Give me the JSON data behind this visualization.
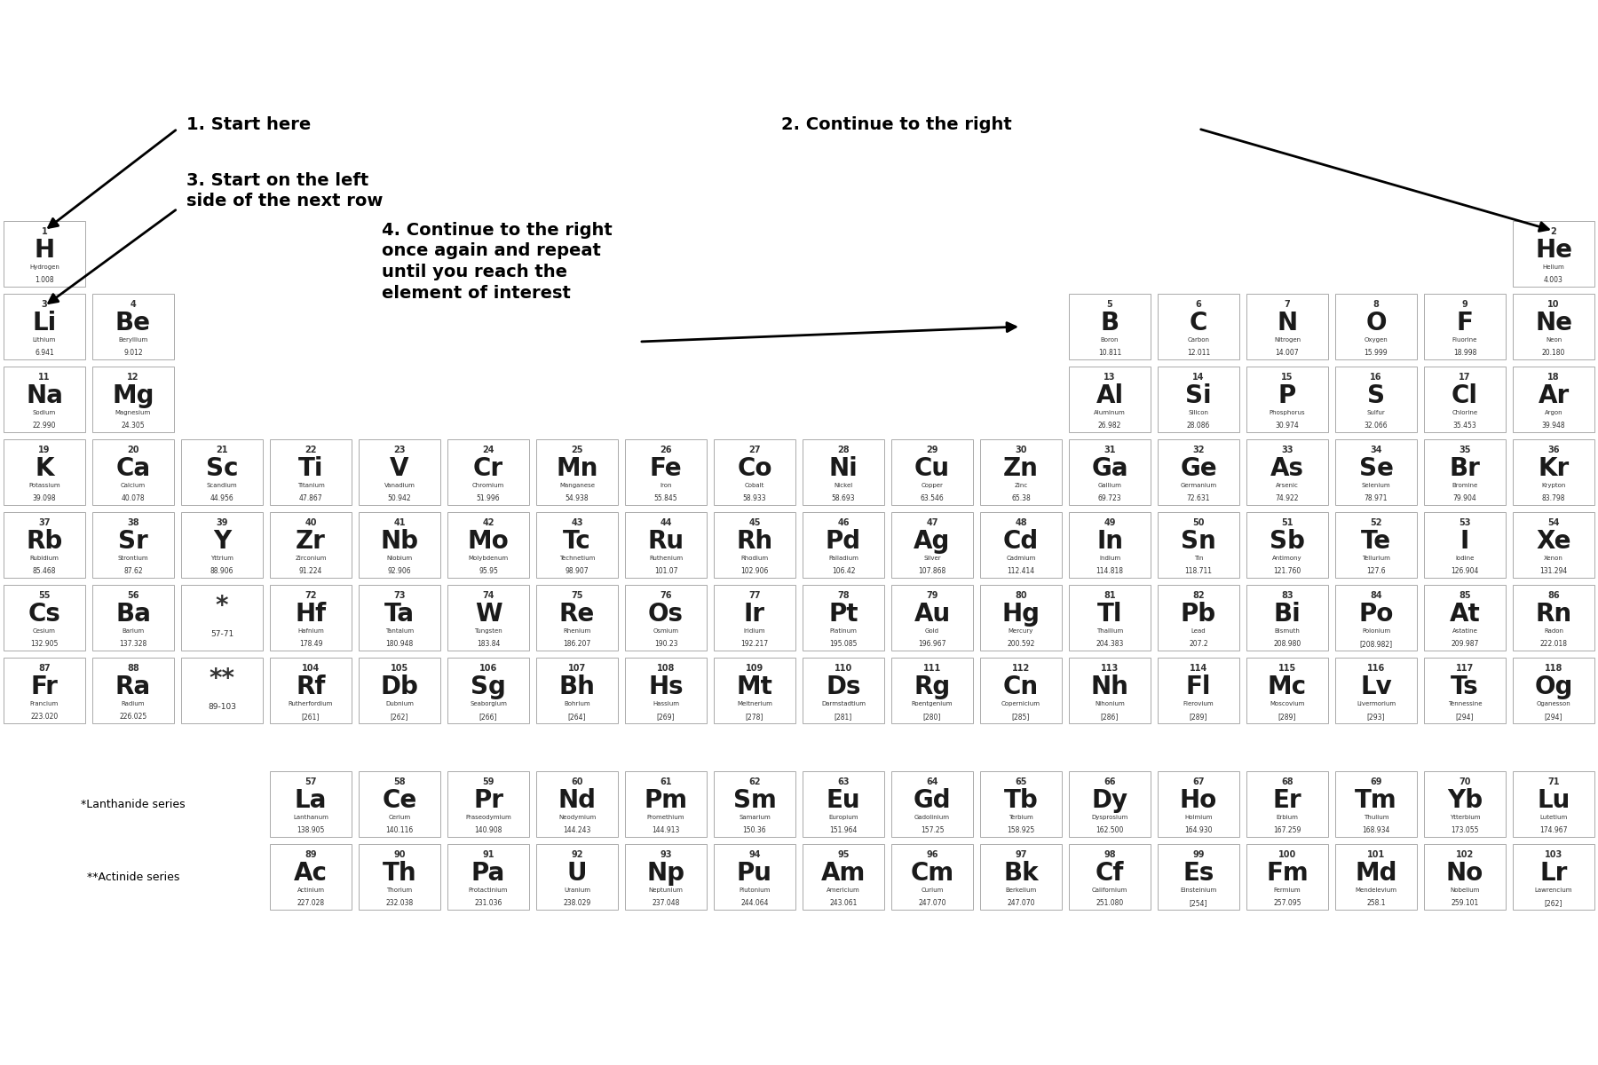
{
  "background_color": "#ffffff",
  "elements": [
    {
      "num": 1,
      "sym": "H",
      "name": "Hydrogen",
      "mass": "1.008",
      "row": 1,
      "col": 1
    },
    {
      "num": 2,
      "sym": "He",
      "name": "Helium",
      "mass": "4.003",
      "row": 1,
      "col": 18
    },
    {
      "num": 3,
      "sym": "Li",
      "name": "Lithium",
      "mass": "6.941",
      "row": 2,
      "col": 1
    },
    {
      "num": 4,
      "sym": "Be",
      "name": "Beryllium",
      "mass": "9.012",
      "row": 2,
      "col": 2
    },
    {
      "num": 5,
      "sym": "B",
      "name": "Boron",
      "mass": "10.811",
      "row": 2,
      "col": 13
    },
    {
      "num": 6,
      "sym": "C",
      "name": "Carbon",
      "mass": "12.011",
      "row": 2,
      "col": 14
    },
    {
      "num": 7,
      "sym": "N",
      "name": "Nitrogen",
      "mass": "14.007",
      "row": 2,
      "col": 15
    },
    {
      "num": 8,
      "sym": "O",
      "name": "Oxygen",
      "mass": "15.999",
      "row": 2,
      "col": 16
    },
    {
      "num": 9,
      "sym": "F",
      "name": "Fluorine",
      "mass": "18.998",
      "row": 2,
      "col": 17
    },
    {
      "num": 10,
      "sym": "Ne",
      "name": "Neon",
      "mass": "20.180",
      "row": 2,
      "col": 18
    },
    {
      "num": 11,
      "sym": "Na",
      "name": "Sodium",
      "mass": "22.990",
      "row": 3,
      "col": 1
    },
    {
      "num": 12,
      "sym": "Mg",
      "name": "Magnesium",
      "mass": "24.305",
      "row": 3,
      "col": 2
    },
    {
      "num": 13,
      "sym": "Al",
      "name": "Aluminum",
      "mass": "26.982",
      "row": 3,
      "col": 13
    },
    {
      "num": 14,
      "sym": "Si",
      "name": "Silicon",
      "mass": "28.086",
      "row": 3,
      "col": 14
    },
    {
      "num": 15,
      "sym": "P",
      "name": "Phosphorus",
      "mass": "30.974",
      "row": 3,
      "col": 15
    },
    {
      "num": 16,
      "sym": "S",
      "name": "Sulfur",
      "mass": "32.066",
      "row": 3,
      "col": 16
    },
    {
      "num": 17,
      "sym": "Cl",
      "name": "Chlorine",
      "mass": "35.453",
      "row": 3,
      "col": 17
    },
    {
      "num": 18,
      "sym": "Ar",
      "name": "Argon",
      "mass": "39.948",
      "row": 3,
      "col": 18
    },
    {
      "num": 19,
      "sym": "K",
      "name": "Potassium",
      "mass": "39.098",
      "row": 4,
      "col": 1
    },
    {
      "num": 20,
      "sym": "Ca",
      "name": "Calcium",
      "mass": "40.078",
      "row": 4,
      "col": 2
    },
    {
      "num": 21,
      "sym": "Sc",
      "name": "Scandium",
      "mass": "44.956",
      "row": 4,
      "col": 3
    },
    {
      "num": 22,
      "sym": "Ti",
      "name": "Titanium",
      "mass": "47.867",
      "row": 4,
      "col": 4
    },
    {
      "num": 23,
      "sym": "V",
      "name": "Vanadium",
      "mass": "50.942",
      "row": 4,
      "col": 5
    },
    {
      "num": 24,
      "sym": "Cr",
      "name": "Chromium",
      "mass": "51.996",
      "row": 4,
      "col": 6
    },
    {
      "num": 25,
      "sym": "Mn",
      "name": "Manganese",
      "mass": "54.938",
      "row": 4,
      "col": 7
    },
    {
      "num": 26,
      "sym": "Fe",
      "name": "Iron",
      "mass": "55.845",
      "row": 4,
      "col": 8
    },
    {
      "num": 27,
      "sym": "Co",
      "name": "Cobalt",
      "mass": "58.933",
      "row": 4,
      "col": 9
    },
    {
      "num": 28,
      "sym": "Ni",
      "name": "Nickel",
      "mass": "58.693",
      "row": 4,
      "col": 10
    },
    {
      "num": 29,
      "sym": "Cu",
      "name": "Copper",
      "mass": "63.546",
      "row": 4,
      "col": 11
    },
    {
      "num": 30,
      "sym": "Zn",
      "name": "Zinc",
      "mass": "65.38",
      "row": 4,
      "col": 12
    },
    {
      "num": 31,
      "sym": "Ga",
      "name": "Gallium",
      "mass": "69.723",
      "row": 4,
      "col": 13
    },
    {
      "num": 32,
      "sym": "Ge",
      "name": "Germanium",
      "mass": "72.631",
      "row": 4,
      "col": 14
    },
    {
      "num": 33,
      "sym": "As",
      "name": "Arsenic",
      "mass": "74.922",
      "row": 4,
      "col": 15
    },
    {
      "num": 34,
      "sym": "Se",
      "name": "Selenium",
      "mass": "78.971",
      "row": 4,
      "col": 16
    },
    {
      "num": 35,
      "sym": "Br",
      "name": "Bromine",
      "mass": "79.904",
      "row": 4,
      "col": 17
    },
    {
      "num": 36,
      "sym": "Kr",
      "name": "Krypton",
      "mass": "83.798",
      "row": 4,
      "col": 18
    },
    {
      "num": 37,
      "sym": "Rb",
      "name": "Rubidium",
      "mass": "85.468",
      "row": 5,
      "col": 1
    },
    {
      "num": 38,
      "sym": "Sr",
      "name": "Strontium",
      "mass": "87.62",
      "row": 5,
      "col": 2
    },
    {
      "num": 39,
      "sym": "Y",
      "name": "Yttrium",
      "mass": "88.906",
      "row": 5,
      "col": 3
    },
    {
      "num": 40,
      "sym": "Zr",
      "name": "Zirconium",
      "mass": "91.224",
      "row": 5,
      "col": 4
    },
    {
      "num": 41,
      "sym": "Nb",
      "name": "Niobium",
      "mass": "92.906",
      "row": 5,
      "col": 5
    },
    {
      "num": 42,
      "sym": "Mo",
      "name": "Molybdenum",
      "mass": "95.95",
      "row": 5,
      "col": 6
    },
    {
      "num": 43,
      "sym": "Tc",
      "name": "Technetium",
      "mass": "98.907",
      "row": 5,
      "col": 7
    },
    {
      "num": 44,
      "sym": "Ru",
      "name": "Ruthenium",
      "mass": "101.07",
      "row": 5,
      "col": 8
    },
    {
      "num": 45,
      "sym": "Rh",
      "name": "Rhodium",
      "mass": "102.906",
      "row": 5,
      "col": 9
    },
    {
      "num": 46,
      "sym": "Pd",
      "name": "Palladium",
      "mass": "106.42",
      "row": 5,
      "col": 10
    },
    {
      "num": 47,
      "sym": "Ag",
      "name": "Silver",
      "mass": "107.868",
      "row": 5,
      "col": 11
    },
    {
      "num": 48,
      "sym": "Cd",
      "name": "Cadmium",
      "mass": "112.414",
      "row": 5,
      "col": 12
    },
    {
      "num": 49,
      "sym": "In",
      "name": "Indium",
      "mass": "114.818",
      "row": 5,
      "col": 13
    },
    {
      "num": 50,
      "sym": "Sn",
      "name": "Tin",
      "mass": "118.711",
      "row": 5,
      "col": 14
    },
    {
      "num": 51,
      "sym": "Sb",
      "name": "Antimony",
      "mass": "121.760",
      "row": 5,
      "col": 15
    },
    {
      "num": 52,
      "sym": "Te",
      "name": "Tellurium",
      "mass": "127.6",
      "row": 5,
      "col": 16
    },
    {
      "num": 53,
      "sym": "I",
      "name": "Iodine",
      "mass": "126.904",
      "row": 5,
      "col": 17
    },
    {
      "num": 54,
      "sym": "Xe",
      "name": "Xenon",
      "mass": "131.294",
      "row": 5,
      "col": 18
    },
    {
      "num": 55,
      "sym": "Cs",
      "name": "Cesium",
      "mass": "132.905",
      "row": 6,
      "col": 1
    },
    {
      "num": 56,
      "sym": "Ba",
      "name": "Barium",
      "mass": "137.328",
      "row": 6,
      "col": 2
    },
    {
      "num": "57-71",
      "sym": "*",
      "name": "",
      "mass": "",
      "row": 6,
      "col": 3,
      "special": true
    },
    {
      "num": 72,
      "sym": "Hf",
      "name": "Hafnium",
      "mass": "178.49",
      "row": 6,
      "col": 4
    },
    {
      "num": 73,
      "sym": "Ta",
      "name": "Tantalum",
      "mass": "180.948",
      "row": 6,
      "col": 5
    },
    {
      "num": 74,
      "sym": "W",
      "name": "Tungsten",
      "mass": "183.84",
      "row": 6,
      "col": 6
    },
    {
      "num": 75,
      "sym": "Re",
      "name": "Rhenium",
      "mass": "186.207",
      "row": 6,
      "col": 7
    },
    {
      "num": 76,
      "sym": "Os",
      "name": "Osmium",
      "mass": "190.23",
      "row": 6,
      "col": 8
    },
    {
      "num": 77,
      "sym": "Ir",
      "name": "Iridium",
      "mass": "192.217",
      "row": 6,
      "col": 9
    },
    {
      "num": 78,
      "sym": "Pt",
      "name": "Platinum",
      "mass": "195.085",
      "row": 6,
      "col": 10
    },
    {
      "num": 79,
      "sym": "Au",
      "name": "Gold",
      "mass": "196.967",
      "row": 6,
      "col": 11
    },
    {
      "num": 80,
      "sym": "Hg",
      "name": "Mercury",
      "mass": "200.592",
      "row": 6,
      "col": 12
    },
    {
      "num": 81,
      "sym": "Tl",
      "name": "Thallium",
      "mass": "204.383",
      "row": 6,
      "col": 13
    },
    {
      "num": 82,
      "sym": "Pb",
      "name": "Lead",
      "mass": "207.2",
      "row": 6,
      "col": 14
    },
    {
      "num": 83,
      "sym": "Bi",
      "name": "Bismuth",
      "mass": "208.980",
      "row": 6,
      "col": 15
    },
    {
      "num": 84,
      "sym": "Po",
      "name": "Polonium",
      "mass": "[208.982]",
      "row": 6,
      "col": 16
    },
    {
      "num": 85,
      "sym": "At",
      "name": "Astatine",
      "mass": "209.987",
      "row": 6,
      "col": 17
    },
    {
      "num": 86,
      "sym": "Rn",
      "name": "Radon",
      "mass": "222.018",
      "row": 6,
      "col": 18
    },
    {
      "num": 87,
      "sym": "Fr",
      "name": "Francium",
      "mass": "223.020",
      "row": 7,
      "col": 1
    },
    {
      "num": 88,
      "sym": "Ra",
      "name": "Radium",
      "mass": "226.025",
      "row": 7,
      "col": 2
    },
    {
      "num": "89-103",
      "sym": "**",
      "name": "",
      "mass": "",
      "row": 7,
      "col": 3,
      "special": true
    },
    {
      "num": 104,
      "sym": "Rf",
      "name": "Rutherfordium",
      "mass": "[261]",
      "row": 7,
      "col": 4
    },
    {
      "num": 105,
      "sym": "Db",
      "name": "Dubnium",
      "mass": "[262]",
      "row": 7,
      "col": 5
    },
    {
      "num": 106,
      "sym": "Sg",
      "name": "Seaborgium",
      "mass": "[266]",
      "row": 7,
      "col": 6
    },
    {
      "num": 107,
      "sym": "Bh",
      "name": "Bohrium",
      "mass": "[264]",
      "row": 7,
      "col": 7
    },
    {
      "num": 108,
      "sym": "Hs",
      "name": "Hassium",
      "mass": "[269]",
      "row": 7,
      "col": 8
    },
    {
      "num": 109,
      "sym": "Mt",
      "name": "Meitnerium",
      "mass": "[278]",
      "row": 7,
      "col": 9
    },
    {
      "num": 110,
      "sym": "Ds",
      "name": "Darmstadtium",
      "mass": "[281]",
      "row": 7,
      "col": 10
    },
    {
      "num": 111,
      "sym": "Rg",
      "name": "Roentgenium",
      "mass": "[280]",
      "row": 7,
      "col": 11
    },
    {
      "num": 112,
      "sym": "Cn",
      "name": "Copernicium",
      "mass": "[285]",
      "row": 7,
      "col": 12
    },
    {
      "num": 113,
      "sym": "Nh",
      "name": "Nihonium",
      "mass": "[286]",
      "row": 7,
      "col": 13
    },
    {
      "num": 114,
      "sym": "Fl",
      "name": "Flerovium",
      "mass": "[289]",
      "row": 7,
      "col": 14
    },
    {
      "num": 115,
      "sym": "Mc",
      "name": "Moscovium",
      "mass": "[289]",
      "row": 7,
      "col": 15
    },
    {
      "num": 116,
      "sym": "Lv",
      "name": "Livermorium",
      "mass": "[293]",
      "row": 7,
      "col": 16
    },
    {
      "num": 117,
      "sym": "Ts",
      "name": "Tennessine",
      "mass": "[294]",
      "row": 7,
      "col": 17
    },
    {
      "num": 118,
      "sym": "Og",
      "name": "Oganesson",
      "mass": "[294]",
      "row": 7,
      "col": 18
    },
    {
      "num": 57,
      "sym": "La",
      "name": "Lanthanum",
      "mass": "138.905",
      "row": 9,
      "col": 4
    },
    {
      "num": 58,
      "sym": "Ce",
      "name": "Cerium",
      "mass": "140.116",
      "row": 9,
      "col": 5
    },
    {
      "num": 59,
      "sym": "Pr",
      "name": "Praseodymium",
      "mass": "140.908",
      "row": 9,
      "col": 6
    },
    {
      "num": 60,
      "sym": "Nd",
      "name": "Neodymium",
      "mass": "144.243",
      "row": 9,
      "col": 7
    },
    {
      "num": 61,
      "sym": "Pm",
      "name": "Promethium",
      "mass": "144.913",
      "row": 9,
      "col": 8
    },
    {
      "num": 62,
      "sym": "Sm",
      "name": "Samarium",
      "mass": "150.36",
      "row": 9,
      "col": 9
    },
    {
      "num": 63,
      "sym": "Eu",
      "name": "Europium",
      "mass": "151.964",
      "row": 9,
      "col": 10
    },
    {
      "num": 64,
      "sym": "Gd",
      "name": "Gadolinium",
      "mass": "157.25",
      "row": 9,
      "col": 11
    },
    {
      "num": 65,
      "sym": "Tb",
      "name": "Terbium",
      "mass": "158.925",
      "row": 9,
      "col": 12
    },
    {
      "num": 66,
      "sym": "Dy",
      "name": "Dysprosium",
      "mass": "162.500",
      "row": 9,
      "col": 13
    },
    {
      "num": 67,
      "sym": "Ho",
      "name": "Holmium",
      "mass": "164.930",
      "row": 9,
      "col": 14
    },
    {
      "num": 68,
      "sym": "Er",
      "name": "Erbium",
      "mass": "167.259",
      "row": 9,
      "col": 15
    },
    {
      "num": 69,
      "sym": "Tm",
      "name": "Thulium",
      "mass": "168.934",
      "row": 9,
      "col": 16
    },
    {
      "num": 70,
      "sym": "Yb",
      "name": "Ytterbium",
      "mass": "173.055",
      "row": 9,
      "col": 17
    },
    {
      "num": 71,
      "sym": "Lu",
      "name": "Lutetium",
      "mass": "174.967",
      "row": 9,
      "col": 18
    },
    {
      "num": 89,
      "sym": "Ac",
      "name": "Actinium",
      "mass": "227.028",
      "row": 10,
      "col": 4
    },
    {
      "num": 90,
      "sym": "Th",
      "name": "Thorium",
      "mass": "232.038",
      "row": 10,
      "col": 5
    },
    {
      "num": 91,
      "sym": "Pa",
      "name": "Protactinium",
      "mass": "231.036",
      "row": 10,
      "col": 6
    },
    {
      "num": 92,
      "sym": "U",
      "name": "Uranium",
      "mass": "238.029",
      "row": 10,
      "col": 7
    },
    {
      "num": 93,
      "sym": "Np",
      "name": "Neptunium",
      "mass": "237.048",
      "row": 10,
      "col": 8
    },
    {
      "num": 94,
      "sym": "Pu",
      "name": "Plutonium",
      "mass": "244.064",
      "row": 10,
      "col": 9
    },
    {
      "num": 95,
      "sym": "Am",
      "name": "Americium",
      "mass": "243.061",
      "row": 10,
      "col": 10
    },
    {
      "num": 96,
      "sym": "Cm",
      "name": "Curium",
      "mass": "247.070",
      "row": 10,
      "col": 11
    },
    {
      "num": 97,
      "sym": "Bk",
      "name": "Berkelium",
      "mass": "247.070",
      "row": 10,
      "col": 12
    },
    {
      "num": 98,
      "sym": "Cf",
      "name": "Californium",
      "mass": "251.080",
      "row": 10,
      "col": 13
    },
    {
      "num": 99,
      "sym": "Es",
      "name": "Einsteinium",
      "mass": "[254]",
      "row": 10,
      "col": 14
    },
    {
      "num": 100,
      "sym": "Fm",
      "name": "Fermium",
      "mass": "257.095",
      "row": 10,
      "col": 15
    },
    {
      "num": 101,
      "sym": "Md",
      "name": "Mendelevium",
      "mass": "258.1",
      "row": 10,
      "col": 16
    },
    {
      "num": 102,
      "sym": "No",
      "name": "Nobelium",
      "mass": "259.101",
      "row": 10,
      "col": 17
    },
    {
      "num": 103,
      "sym": "Lr",
      "name": "Lawrencium",
      "mass": "[262]",
      "row": 10,
      "col": 18
    }
  ]
}
